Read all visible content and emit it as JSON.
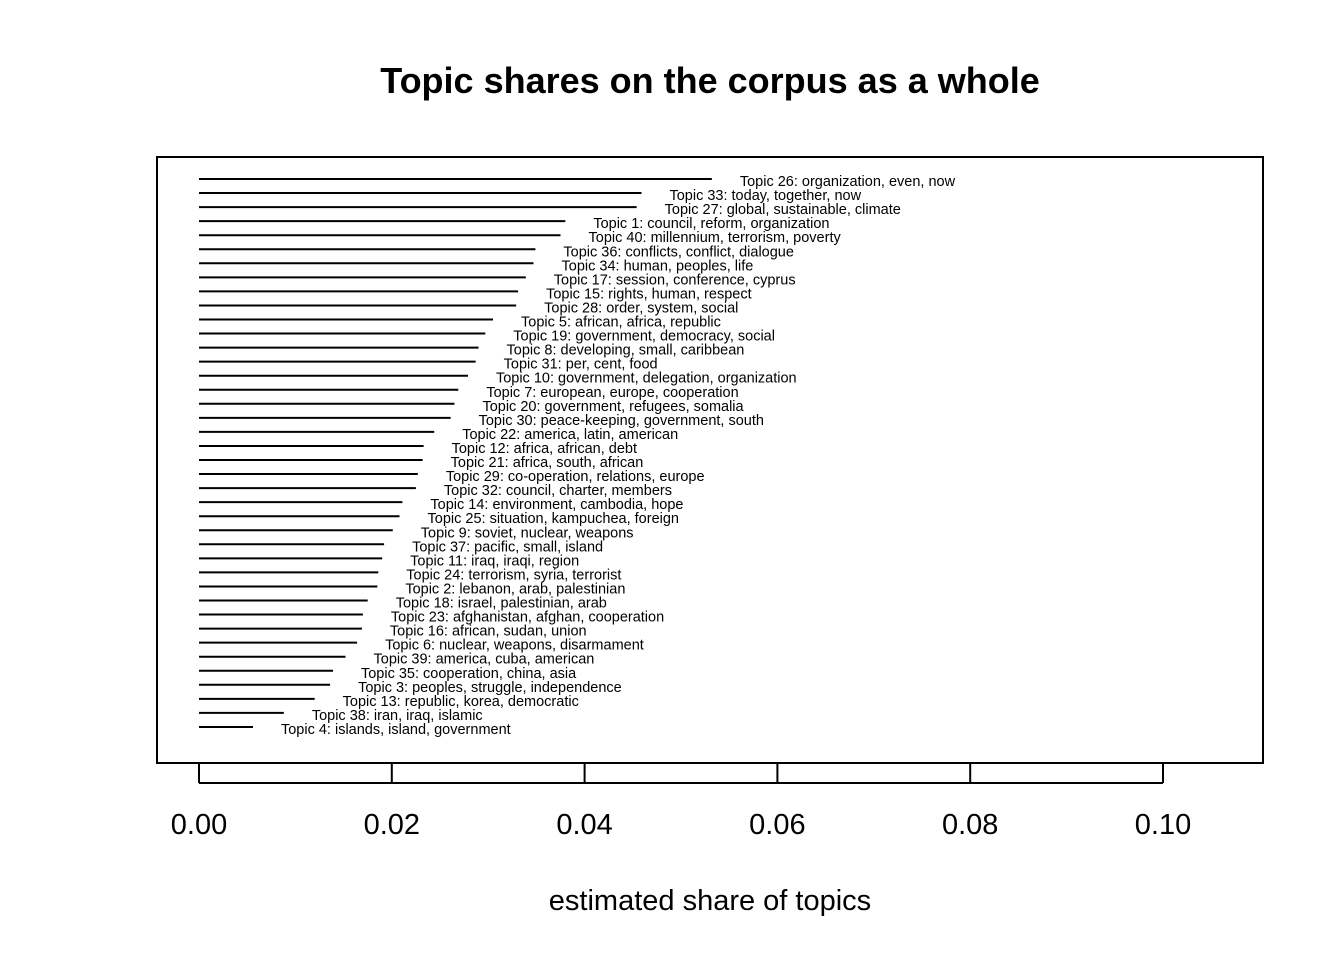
{
  "chart_data": {
    "type": "bar",
    "orientation": "horizontal",
    "title": "Topic shares on the corpus as a whole",
    "xlabel": "estimated share of topics",
    "ylabel": "",
    "xlim": [
      0,
      0.11
    ],
    "xticks": [
      "0.00",
      "0.02",
      "0.04",
      "0.06",
      "0.08",
      "0.10"
    ],
    "xtick_values": [
      0,
      0.02,
      0.04,
      0.06,
      0.08,
      0.1
    ],
    "grid": false,
    "bar_color": "#000000",
    "categories": [
      "Topic 26: organization, even, now",
      "Topic 33: today, together, now",
      "Topic 27: global, sustainable, climate",
      "Topic 1: council, reform, organization",
      "Topic 40: millennium, terrorism, poverty",
      "Topic 36: conflicts, conflict, dialogue",
      "Topic 34: human, peoples, life",
      "Topic 17: session, conference, cyprus",
      "Topic 15: rights, human, respect",
      "Topic 28: order, system, social",
      "Topic 5: african, africa, republic",
      "Topic 19: government, democracy, social",
      "Topic 8: developing, small, caribbean",
      "Topic 31: per, cent, food",
      "Topic 10: government, delegation, organization",
      "Topic 7: european, europe, cooperation",
      "Topic 20: government, refugees, somalia",
      "Topic 30: peace-keeping, government, south",
      "Topic 22: america, latin, american",
      "Topic 12: africa, african, debt",
      "Topic 21: africa, south, african",
      "Topic 29: co-operation, relations, europe",
      "Topic 32: council, charter, members",
      "Topic 14: environment, cambodia, hope",
      "Topic 25: situation, kampuchea, foreign",
      "Topic 9: soviet, nuclear, weapons",
      "Topic 37: pacific, small, island",
      "Topic 11: iraq, iraqi, region",
      "Topic 24: terrorism, syria, terrorist",
      "Topic 2: lebanon, arab, palestinian",
      "Topic 18: israel, palestinian, arab",
      "Topic 23: afghanistan, afghan, cooperation",
      "Topic 16: african, sudan, union",
      "Topic 6: nuclear, weapons, disarmament",
      "Topic 39: america, cuba, american",
      "Topic 35: cooperation, china, asia",
      "Topic 3: peoples, struggle, independence",
      "Topic 13: republic, korea, democratic",
      "Topic 38: iran, iraq, islamic",
      "Topic 4: islands, island, government"
    ],
    "values": [
      0.0532,
      0.0459,
      0.0454,
      0.038,
      0.0375,
      0.0349,
      0.0347,
      0.0339,
      0.0331,
      0.0329,
      0.0305,
      0.0297,
      0.029,
      0.0287,
      0.0279,
      0.0269,
      0.0265,
      0.0261,
      0.0244,
      0.0233,
      0.0232,
      0.0227,
      0.0225,
      0.0211,
      0.0208,
      0.0201,
      0.0192,
      0.019,
      0.0186,
      0.0185,
      0.0175,
      0.017,
      0.0169,
      0.0164,
      0.0152,
      0.0139,
      0.0136,
      0.012,
      0.0088,
      0.0056
    ]
  }
}
